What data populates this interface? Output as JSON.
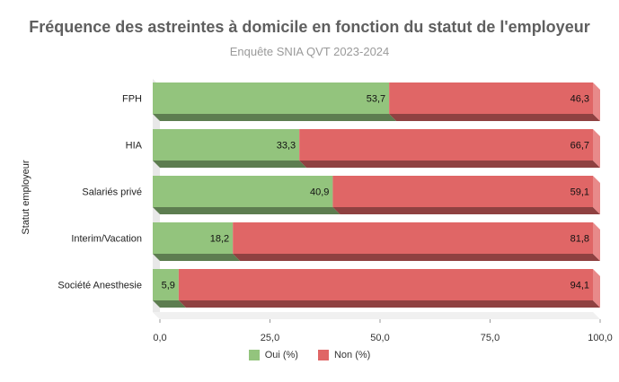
{
  "chart_data": {
    "type": "bar",
    "orientation": "horizontal",
    "stacked": true,
    "percent_stacked": true,
    "three_d": true,
    "title": "Fréquence des astreintes à domicile en fonction du statut de l'employeur",
    "subtitle": "Enquête SNIA QVT 2023-2024",
    "ylabel": "Statut employeur",
    "xlabel": "",
    "categories": [
      "FPH",
      "HIA",
      "Salariés privé",
      "Interim/Vacation",
      "Société Anesthesie"
    ],
    "series": [
      {
        "name": "Oui (%)",
        "values": [
          53.7,
          33.3,
          40.9,
          18.2,
          5.9
        ],
        "labels": [
          "53,7",
          "33,3",
          "40,9",
          "18,2",
          "5,9"
        ],
        "color": "#93c47d",
        "shadow": "#5d7d50"
      },
      {
        "name": "Non (%)",
        "values": [
          46.3,
          66.7,
          59.1,
          81.8,
          94.1
        ],
        "labels": [
          "46,3",
          "66,7",
          "59,1",
          "81,8",
          "94,1"
        ],
        "color": "#e06666",
        "shadow": "#8f4141"
      }
    ],
    "xlim": [
      0,
      100
    ],
    "xticks": [
      0,
      25,
      50,
      75,
      100
    ],
    "xtick_labels": [
      "0,0",
      "25,0",
      "50,0",
      "75,0",
      "100,0"
    ],
    "grid": false,
    "legend_position": "bottom"
  }
}
